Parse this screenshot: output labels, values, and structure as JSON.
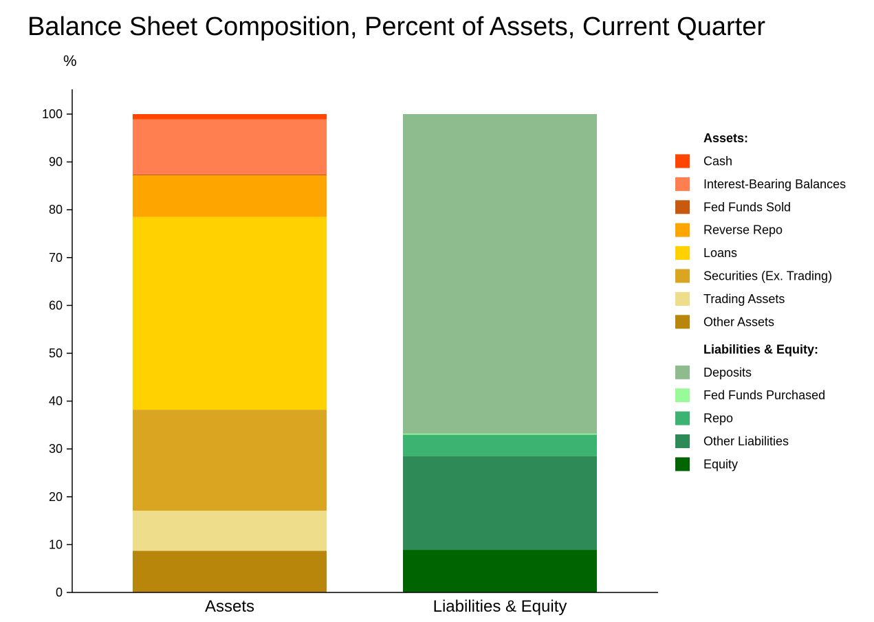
{
  "chart_data": {
    "type": "bar",
    "stacked": true,
    "title": "Balance Sheet Composition, Percent of Assets, Current Quarter",
    "ylabel": "%",
    "xlabel": "",
    "ylim": [
      0,
      100
    ],
    "yticks": [
      0,
      10,
      20,
      30,
      40,
      50,
      60,
      70,
      80,
      90,
      100
    ],
    "grid": false,
    "legend_position": "right",
    "categories": [
      "Assets",
      "Liabilities & Equity"
    ],
    "legend_groups": [
      {
        "heading": "Assets:",
        "series_indices": [
          0,
          1,
          2,
          3,
          4,
          5,
          6,
          7
        ]
      },
      {
        "heading": "Liabilities & Equity:",
        "series_indices": [
          8,
          9,
          10,
          11,
          12
        ]
      }
    ],
    "series": [
      {
        "name": "Cash",
        "color": "#ff4500",
        "values": [
          1.1,
          0
        ]
      },
      {
        "name": "Interest-Bearing Balances",
        "color": "#ff7f50",
        "values": [
          11.5,
          0
        ]
      },
      {
        "name": "Fed Funds Sold",
        "color": "#c85a10",
        "values": [
          0.2,
          0
        ]
      },
      {
        "name": "Reverse Repo",
        "color": "#ffa500",
        "values": [
          8.7,
          0
        ]
      },
      {
        "name": "Loans",
        "color": "#ffd100",
        "values": [
          40.3,
          0
        ]
      },
      {
        "name": "Securities (Ex. Trading)",
        "color": "#daa520",
        "values": [
          21.1,
          0
        ]
      },
      {
        "name": "Trading Assets",
        "color": "#eedd8a",
        "values": [
          8.4,
          0
        ]
      },
      {
        "name": "Other Assets",
        "color": "#b8860b",
        "values": [
          8.7,
          0
        ]
      },
      {
        "name": "Deposits",
        "color": "#8fbc8f",
        "values": [
          0,
          66.8
        ]
      },
      {
        "name": "Fed Funds Purchased",
        "color": "#98fb98",
        "values": [
          0,
          0.2
        ]
      },
      {
        "name": "Repo",
        "color": "#3cb371",
        "values": [
          0,
          4.5
        ]
      },
      {
        "name": "Other Liabilities",
        "color": "#2e8b57",
        "values": [
          0,
          19.6
        ]
      },
      {
        "name": "Equity",
        "color": "#006400",
        "values": [
          0,
          8.9
        ]
      }
    ]
  }
}
